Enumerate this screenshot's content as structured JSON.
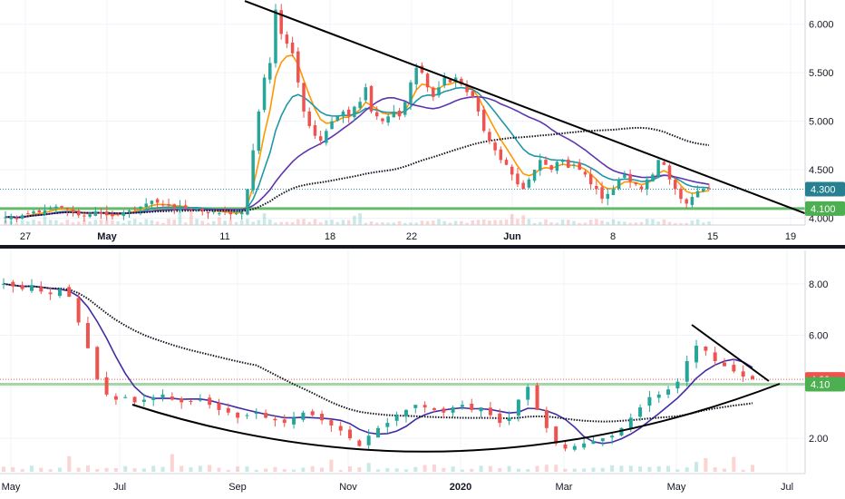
{
  "chart_data": [
    {
      "type": "candlestick",
      "panel": "top",
      "title": "",
      "x_tick_labels": [
        "27",
        "May",
        "11",
        "18",
        "22",
        "Jun",
        "8",
        "15",
        "19"
      ],
      "x_tick_bold": [
        false,
        true,
        false,
        false,
        false,
        true,
        false,
        false,
        false
      ],
      "y_tick_labels": [
        "6.000",
        "5.500",
        "5.000",
        "4.500",
        "4.000"
      ],
      "y_tick_values": [
        6.0,
        5.5,
        5.0,
        4.5,
        4.0
      ],
      "ylim": [
        3.93,
        6.25
      ],
      "price_badges": [
        {
          "label": "4.300",
          "value": 4.3,
          "color": "#26808f"
        },
        {
          "label": "4.100",
          "value": 4.1,
          "color": "#4caf50"
        }
      ],
      "horizontal_levels": [
        {
          "value": 4.3,
          "style": "dotted",
          "color": "#2a8ea0"
        },
        {
          "value": 4.1,
          "style": "solid",
          "color": "#66bb6a"
        }
      ],
      "trendlines": [
        {
          "name": "",
          "points": [
            [
              0.305,
              6.24
            ],
            [
              1.0,
              4.1
            ]
          ]
        }
      ],
      "series": [
        {
          "kind": "close",
          "values": [
            4.01,
            4.02,
            3.99,
            4.03,
            4.05,
            4.07,
            4.06,
            4.08,
            4.1,
            4.12,
            4.11,
            4.09,
            4.06,
            4.03,
            4.02,
            4.04,
            4.07,
            4.05,
            4.03,
            4.02,
            4.04,
            4.06,
            4.08,
            4.1,
            4.12,
            4.15,
            4.18,
            4.16,
            4.14,
            4.13,
            4.11,
            4.12,
            4.1,
            4.09,
            4.11,
            4.08,
            4.06,
            4.07,
            4.05,
            4.06,
            4.04,
            4.05,
            4.06,
            4.3,
            4.7,
            5.1,
            5.45,
            5.6,
            6.15,
            5.9,
            5.8,
            5.7,
            5.4,
            5.1,
            4.95,
            4.85,
            4.8,
            4.9,
            5.0,
            5.05,
            5.1,
            5.05,
            5.15,
            5.2,
            5.35,
            5.1,
            5.05,
            5.0,
            5.05,
            5.1,
            5.05,
            5.2,
            5.4,
            5.55,
            5.5,
            5.35,
            5.25,
            5.35,
            5.45,
            5.4,
            5.45,
            5.38,
            5.3,
            5.25,
            5.1,
            4.9,
            4.8,
            4.7,
            4.6,
            4.55,
            4.45,
            4.35,
            4.3,
            4.4,
            4.5,
            4.6,
            4.55,
            4.5,
            4.58,
            4.6,
            4.52,
            4.55,
            4.5,
            4.45,
            4.35,
            4.3,
            4.2,
            4.25,
            4.3,
            4.4,
            4.45,
            4.38,
            4.35,
            4.3,
            4.4,
            4.45,
            4.6,
            4.55,
            4.4,
            4.3,
            4.2,
            4.15,
            4.22,
            4.28,
            4.3,
            4.3
          ]
        }
      ]
    },
    {
      "type": "candlestick",
      "panel": "bottom",
      "title": "",
      "x_tick_labels": [
        "May",
        "Jul",
        "Sep",
        "Nov",
        "2020",
        "Mar",
        "May",
        "Jul"
      ],
      "x_tick_bold": [
        false,
        false,
        false,
        false,
        true,
        false,
        false,
        false
      ],
      "y_tick_labels": [
        "8.00",
        "6.00",
        "4.00",
        "2.00"
      ],
      "y_tick_values": [
        8.0,
        6.0,
        4.0,
        2.0
      ],
      "ylim": [
        0.7,
        9.3
      ],
      "price_badges": [
        {
          "label": "4.29",
          "value": 4.29,
          "color": "#ef5350"
        },
        {
          "label": "4.10",
          "value": 4.1,
          "color": "#4caf50"
        }
      ],
      "horizontal_levels": [
        {
          "value": 4.29,
          "style": "dotted",
          "color": "#ef5350"
        },
        {
          "value": 4.1,
          "style": "solid",
          "color": "#a5d6a7"
        }
      ],
      "series": [
        {
          "kind": "close",
          "values": [
            8.0,
            7.9,
            7.8,
            7.95,
            7.7,
            7.6,
            7.8,
            7.5,
            6.5,
            5.5,
            4.3,
            3.7,
            3.5,
            3.6,
            3.4,
            3.5,
            3.6,
            3.7,
            3.5,
            3.4,
            3.45,
            3.5,
            3.3,
            3.1,
            3.0,
            2.8,
            2.9,
            3.0,
            2.8,
            2.7,
            2.6,
            2.8,
            3.0,
            2.9,
            2.7,
            2.5,
            2.3,
            2.0,
            1.7,
            2.1,
            2.4,
            2.6,
            2.9,
            3.1,
            3.3,
            3.2,
            3.1,
            3.0,
            3.2,
            3.3,
            3.1,
            3.2,
            2.9,
            2.6,
            2.8,
            3.5,
            4.0,
            3.1,
            2.4,
            1.8,
            1.6,
            1.7,
            1.8,
            1.9,
            2.0,
            2.1,
            2.4,
            2.8,
            3.2,
            3.6,
            3.7,
            3.9,
            4.2,
            5.0,
            5.6,
            5.4,
            5.0,
            4.8,
            4.6,
            4.4,
            4.3
          ]
        }
      ]
    }
  ]
}
